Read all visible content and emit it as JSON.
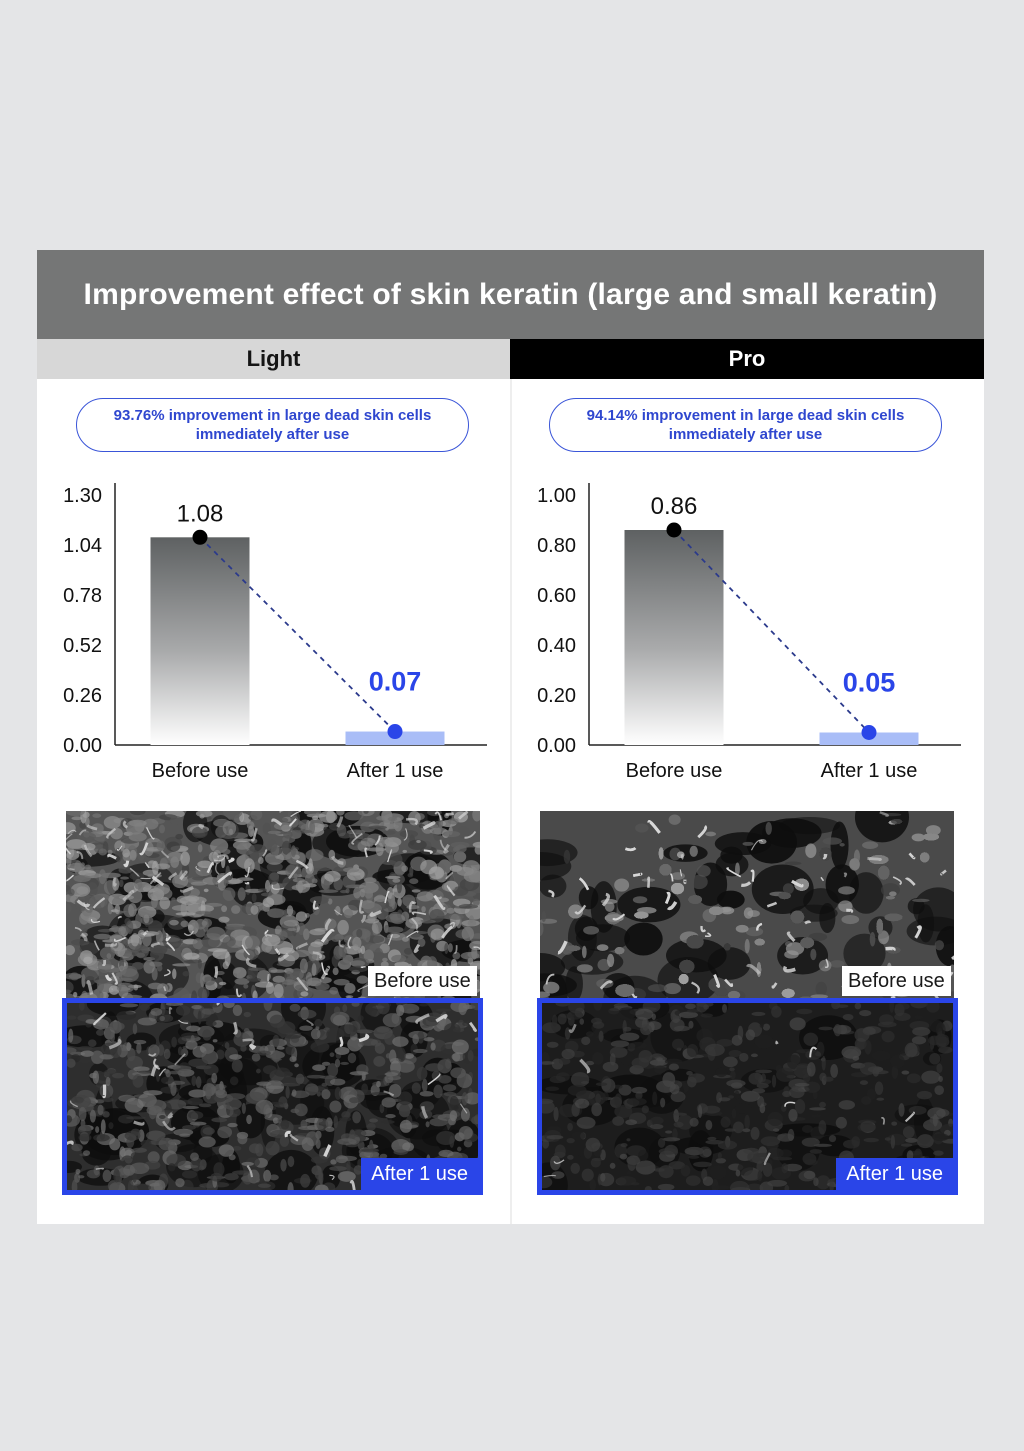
{
  "title": "Improvement effect of skin keratin (large and small keratin)",
  "colors": {
    "accent_blue": "#2a45e8",
    "pill_text_blue": "#2f47cf",
    "title_bar_gray": "#757676",
    "after_bar_light_blue": "#a9bdf7"
  },
  "columns": [
    {
      "header": "Light",
      "summary_line1": "93.76% improvement in large dead skin cells",
      "summary_line2": "immediately after use",
      "photo_before_label": "Before use",
      "photo_after_label": "After 1 use"
    },
    {
      "header": "Pro",
      "summary_line1": "94.14% improvement in large dead skin cells",
      "summary_line2": "immediately after use",
      "photo_before_label": "Before use",
      "photo_after_label": "After 1 use"
    }
  ],
  "chart_data": [
    {
      "type": "bar",
      "categories": [
        "Before use",
        "After 1 use"
      ],
      "values": [
        1.08,
        0.07
      ],
      "value_labels": [
        "1.08",
        "0.07"
      ],
      "ylim": [
        0,
        1.3
      ],
      "yticks": [
        "0.00",
        "0.26",
        "0.52",
        "0.78",
        "1.04",
        "1.30"
      ],
      "grid": false
    },
    {
      "type": "bar",
      "categories": [
        "Before use",
        "After 1 use"
      ],
      "values": [
        0.86,
        0.05
      ],
      "value_labels": [
        "0.86",
        "0.05"
      ],
      "ylim": [
        0,
        1.0
      ],
      "yticks": [
        "0.00",
        "0.20",
        "0.40",
        "0.60",
        "0.80",
        "1.00"
      ],
      "grid": false
    }
  ]
}
